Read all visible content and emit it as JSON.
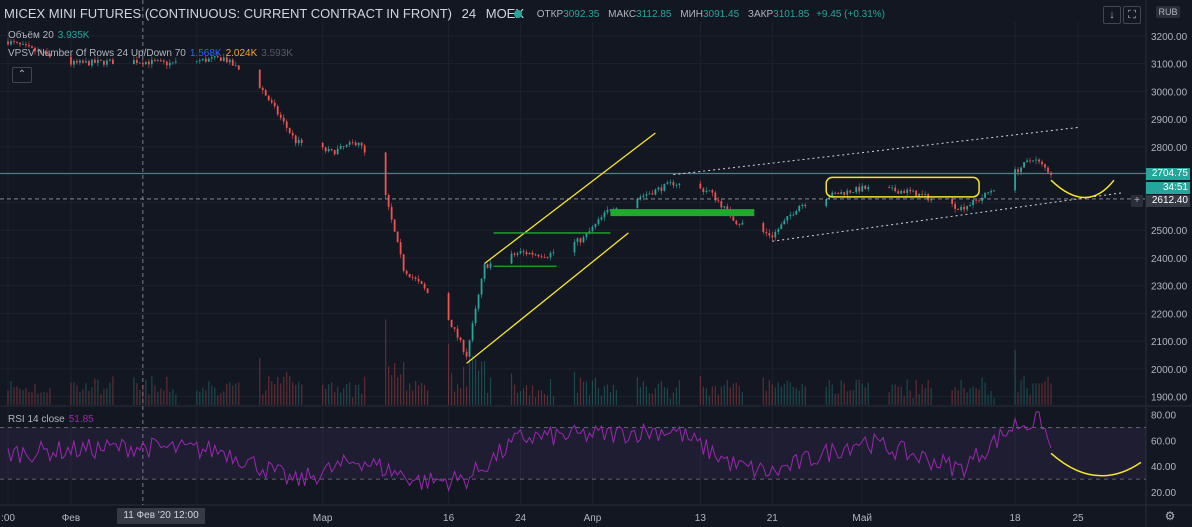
{
  "header": {
    "symbol": "MICEX MINI FUTURES (CONTINUOUS: CURRENT CONTRACT IN FRONT)",
    "interval": "24",
    "exchange": "MOEX",
    "open_label": "ОТКР",
    "open": "3092.35",
    "high_label": "МАКС",
    "high": "3112.85",
    "low_label": "МИН",
    "low": "3091.45",
    "close_label": "ЗАКР",
    "close": "3101.85",
    "change": "+9.45 (+0.31%)"
  },
  "legend": {
    "volume_label": "Объём 20",
    "volume_value": "3.935K",
    "vpsv_label": "VPSV Number Of Rows 24 Up/Down 70",
    "vpsv_up": "1.568K",
    "vpsv_down": "2.024K",
    "vpsv_total": "3.593K",
    "rsi_label": "RSI 14 close",
    "rsi_value": "51.85"
  },
  "toolbar": {
    "currency": "RUB",
    "collapse_glyph": "⌃",
    "download_glyph": "↓",
    "fullscreen_glyph": "⛶",
    "plus_glyph": "+",
    "settings_glyph": "⚙"
  },
  "price_tags": {
    "line_price": "2704.75",
    "countdown": "34:51",
    "crosshair_price": "2612.40"
  },
  "crosshair_time": "11 Фев '20 12:00",
  "colors": {
    "background": "#131722",
    "up": "#26a69a",
    "down": "#ef5350",
    "rsi": "#9c27b0",
    "annotation_yellow": "#f5e52a",
    "annotation_green": "#1faa2e",
    "grid": "#1e222d"
  },
  "chart_data": [
    {
      "type": "candlestick",
      "title": "MICEX MINI FUTURES (CONTINUOUS: CURRENT CONTRACT IN FRONT)",
      "ylabel": "RUB",
      "ylim": [
        1870,
        3250
      ],
      "y_ticks": [
        1900,
        2000,
        2100,
        2200,
        2300,
        2400,
        2500,
        2600,
        2700,
        2800,
        2900,
        3000,
        3100,
        3200
      ],
      "x_ticks": [
        {
          "label": ":00",
          "date": "2020-01-27"
        },
        {
          "label": "Фев",
          "date": "2020-02-03"
        },
        {
          "label": "7",
          "date": "2020-02-17"
        },
        {
          "label": "Мар",
          "date": "2020-03-02"
        },
        {
          "label": "16",
          "date": "2020-03-16"
        },
        {
          "label": "24",
          "date": "2020-03-24"
        },
        {
          "label": "Апр",
          "date": "2020-04-01"
        },
        {
          "label": "13",
          "date": "2020-04-13"
        },
        {
          "label": "21",
          "date": "2020-04-21"
        },
        {
          "label": "Май",
          "date": "2020-05-01"
        },
        {
          "label": "18",
          "date": "2020-05-18"
        },
        {
          "label": "25",
          "date": "2020-05-25"
        }
      ],
      "price_anchors": [
        {
          "date": "2020-01-27",
          "close": 3180
        },
        {
          "date": "2020-02-03",
          "close": 3100
        },
        {
          "date": "2020-02-10",
          "close": 3110
        },
        {
          "date": "2020-02-14",
          "close": 3100
        },
        {
          "date": "2020-02-20",
          "close": 3120
        },
        {
          "date": "2020-02-24",
          "close": 3020
        },
        {
          "date": "2020-02-28",
          "close": 2820
        },
        {
          "date": "2020-03-03",
          "close": 2780
        },
        {
          "date": "2020-03-06",
          "close": 2820
        },
        {
          "date": "2020-03-09",
          "close": 2620
        },
        {
          "date": "2020-03-11",
          "close": 2360
        },
        {
          "date": "2020-03-13",
          "close": 2300
        },
        {
          "date": "2020-03-16",
          "close": 2180
        },
        {
          "date": "2020-03-18",
          "close": 2050
        },
        {
          "date": "2020-03-20",
          "close": 2370
        },
        {
          "date": "2020-03-24",
          "close": 2420
        },
        {
          "date": "2020-03-27",
          "close": 2410
        },
        {
          "date": "2020-03-31",
          "close": 2470
        },
        {
          "date": "2020-04-03",
          "close": 2580
        },
        {
          "date": "2020-04-07",
          "close": 2630
        },
        {
          "date": "2020-04-10",
          "close": 2670
        },
        {
          "date": "2020-04-14",
          "close": 2640
        },
        {
          "date": "2020-04-17",
          "close": 2530
        },
        {
          "date": "2020-04-21",
          "close": 2480
        },
        {
          "date": "2020-04-24",
          "close": 2590
        },
        {
          "date": "2020-04-28",
          "close": 2630
        },
        {
          "date": "2020-05-01",
          "close": 2650
        },
        {
          "date": "2020-05-06",
          "close": 2640
        },
        {
          "date": "2020-05-08",
          "close": 2620
        },
        {
          "date": "2020-05-12",
          "close": 2580
        },
        {
          "date": "2020-05-14",
          "close": 2610
        },
        {
          "date": "2020-05-18",
          "close": 2710
        },
        {
          "date": "2020-05-20",
          "close": 2760
        },
        {
          "date": "2020-05-22",
          "close": 2705
        }
      ],
      "horizontal_line": 2704.75,
      "crosshair": {
        "date": "2020-02-11",
        "price": 2612.4
      },
      "annotations": {
        "rising_channel": {
          "lower": [
            {
              "date": "2020-03-18",
              "price": 2020
            },
            {
              "date": "2020-04-05",
              "price": 2490
            }
          ],
          "upper": [
            {
              "date": "2020-03-20",
              "price": 2380
            },
            {
              "date": "2020-04-08",
              "price": 2850
            }
          ]
        },
        "green_range": {
          "price": 2490,
          "from": "2020-03-21",
          "to": "2020-04-03",
          "low": 2370
        },
        "green_zone": {
          "from": "2020-04-03",
          "to": "2020-04-19",
          "price": 2565
        },
        "wide_channel": {
          "upper": [
            {
              "date": "2020-04-10",
              "price": 2700
            },
            {
              "date": "2020-05-25",
              "price": 2870
            }
          ],
          "lower": [
            {
              "date": "2020-04-21",
              "price": 2460
            },
            {
              "date": "2020-05-30",
              "price": 2635
            }
          ]
        },
        "yellow_box": {
          "from": "2020-04-27",
          "to": "2020-05-14",
          "top": 2690,
          "bottom": 2620
        },
        "yellow_forecast": [
          {
            "date": "2020-05-22",
            "price": 2680
          },
          {
            "date": "2020-05-26",
            "price": 2620
          },
          {
            "date": "2020-05-29",
            "price": 2680
          }
        ]
      }
    },
    {
      "type": "bar",
      "title": "Объём 20",
      "note": "volume histogram at base of price pane"
    },
    {
      "type": "line",
      "title": "RSI 14 close",
      "ylim": [
        10,
        85
      ],
      "y_ticks": [
        20,
        40,
        60,
        80
      ],
      "bands": [
        30,
        70
      ],
      "last_value": 51.85,
      "anchors": [
        {
          "date": "2020-01-27",
          "value": 50
        },
        {
          "date": "2020-02-10",
          "value": 55
        },
        {
          "date": "2020-02-20",
          "value": 52
        },
        {
          "date": "2020-02-28",
          "value": 28
        },
        {
          "date": "2020-03-06",
          "value": 45
        },
        {
          "date": "2020-03-13",
          "value": 28
        },
        {
          "date": "2020-03-18",
          "value": 30
        },
        {
          "date": "2020-03-24",
          "value": 62
        },
        {
          "date": "2020-04-03",
          "value": 65
        },
        {
          "date": "2020-04-10",
          "value": 68
        },
        {
          "date": "2020-04-17",
          "value": 40
        },
        {
          "date": "2020-04-21",
          "value": 35
        },
        {
          "date": "2020-05-01",
          "value": 60
        },
        {
          "date": "2020-05-12",
          "value": 38
        },
        {
          "date": "2020-05-18",
          "value": 72
        },
        {
          "date": "2020-05-21",
          "value": 75
        },
        {
          "date": "2020-05-22",
          "value": 52
        }
      ],
      "forecast": [
        {
          "date": "2020-05-22",
          "value": 50
        },
        {
          "date": "2020-05-27",
          "value": 30
        },
        {
          "date": "2020-06-01",
          "value": 43
        }
      ]
    }
  ]
}
